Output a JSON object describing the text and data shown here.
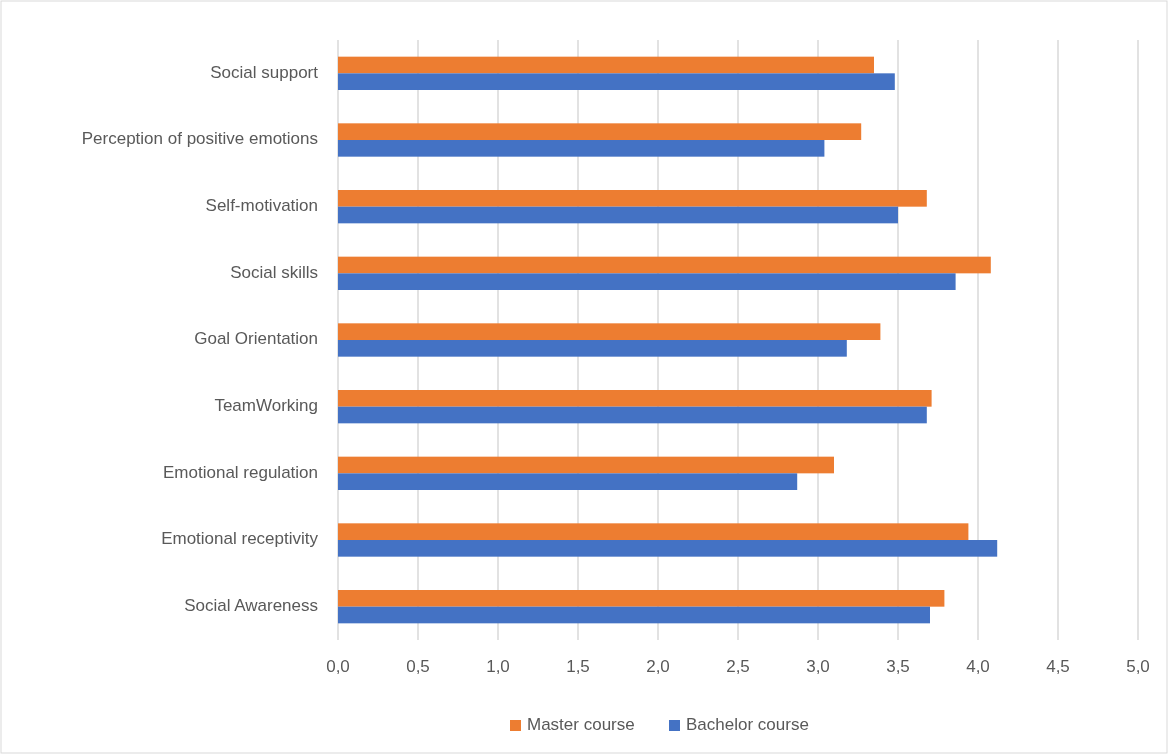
{
  "chart_data": {
    "type": "bar",
    "orientation": "horizontal",
    "categories": [
      "Social support",
      "Perception of positive emotions",
      "Self-motivation",
      "Social skills",
      "Goal Orientation",
      "TeamWorking",
      "Emotional regulation",
      "Emotional receptivity",
      "Social Awareness"
    ],
    "series": [
      {
        "name": "Master course",
        "color": "#ed7d31",
        "values": [
          3.35,
          3.27,
          3.68,
          4.08,
          3.39,
          3.71,
          3.1,
          3.94,
          3.79
        ]
      },
      {
        "name": "Bachelor course",
        "color": "#4472c4",
        "values": [
          3.48,
          3.04,
          3.5,
          3.86,
          3.18,
          3.68,
          2.87,
          4.12,
          3.7
        ]
      }
    ],
    "xlim": [
      0,
      5
    ],
    "xticks": [
      {
        "value": 0,
        "label": "0,0"
      },
      {
        "value": 0.5,
        "label": "0,5"
      },
      {
        "value": 1,
        "label": "1,0"
      },
      {
        "value": 1.5,
        "label": "1,5"
      },
      {
        "value": 2,
        "label": "2,0"
      },
      {
        "value": 2.5,
        "label": "2,5"
      },
      {
        "value": 3,
        "label": "3,0"
      },
      {
        "value": 3.5,
        "label": "3,5"
      },
      {
        "value": 4,
        "label": "4,0"
      },
      {
        "value": 4.5,
        "label": "4,5"
      },
      {
        "value": 5,
        "label": "5,0"
      }
    ],
    "grid": "x",
    "legend": "bottom"
  }
}
